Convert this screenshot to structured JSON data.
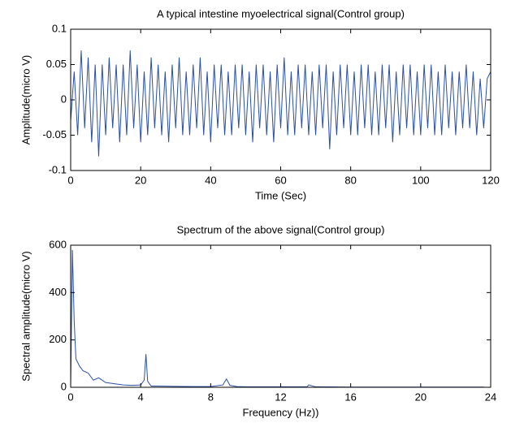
{
  "chart_data": [
    {
      "type": "line",
      "title": "A typical intestine myoelectrical signal(Control group)",
      "x_label": "Time (Sec)",
      "y_label": "Amplitude(micro V)",
      "xlim": [
        0,
        120
      ],
      "ylim": [
        -0.1,
        0.1
      ],
      "xticks": [
        0,
        20,
        40,
        60,
        80,
        100,
        120
      ],
      "yticks": [
        -0.1,
        -0.05,
        0,
        0.05,
        0.1
      ],
      "x": [
        0,
        1,
        2,
        3,
        4,
        5,
        6,
        7,
        8,
        9,
        10,
        11,
        12,
        13,
        14,
        15,
        16,
        17,
        18,
        19,
        20,
        21,
        22,
        23,
        24,
        25,
        26,
        27,
        28,
        29,
        30,
        31,
        32,
        33,
        34,
        35,
        36,
        37,
        38,
        39,
        40,
        41,
        42,
        43,
        44,
        45,
        46,
        47,
        48,
        49,
        50,
        51,
        52,
        53,
        54,
        55,
        56,
        57,
        58,
        59,
        60,
        61,
        62,
        63,
        64,
        65,
        66,
        67,
        68,
        69,
        70,
        71,
        72,
        73,
        74,
        75,
        76,
        77,
        78,
        79,
        80,
        81,
        82,
        83,
        84,
        85,
        86,
        87,
        88,
        89,
        90,
        91,
        92,
        93,
        94,
        95,
        96,
        97,
        98,
        99,
        100,
        101,
        102,
        103,
        104,
        105,
        106,
        107,
        108,
        109,
        110,
        111,
        112,
        113,
        114,
        115,
        116,
        117,
        118,
        119,
        120
      ],
      "series": [
        {
          "color": "#2b4fa8",
          "values": [
            -0.03,
            0.04,
            -0.05,
            0.07,
            -0.04,
            0.06,
            -0.06,
            0.05,
            -0.08,
            0.05,
            -0.05,
            0.06,
            -0.04,
            0.05,
            -0.06,
            0.05,
            -0.05,
            0.07,
            -0.04,
            0.05,
            -0.06,
            0.04,
            -0.05,
            0.06,
            -0.04,
            0.05,
            -0.05,
            0.04,
            -0.06,
            0.05,
            -0.04,
            0.06,
            -0.05,
            0.04,
            -0.05,
            0.05,
            -0.04,
            0.06,
            -0.05,
            0.04,
            -0.06,
            0.05,
            -0.04,
            0.05,
            -0.05,
            0.04,
            -0.05,
            0.05,
            -0.04,
            0.05,
            -0.05,
            0.04,
            -0.06,
            0.05,
            -0.04,
            0.05,
            -0.05,
            0.04,
            -0.06,
            0.05,
            -0.04,
            0.06,
            -0.05,
            0.04,
            -0.05,
            0.05,
            -0.04,
            0.05,
            -0.05,
            0.04,
            -0.05,
            0.05,
            -0.04,
            0.05,
            -0.07,
            0.04,
            -0.05,
            0.05,
            -0.04,
            0.05,
            -0.05,
            0.04,
            -0.05,
            0.05,
            -0.04,
            0.05,
            -0.05,
            0.04,
            -0.05,
            0.05,
            -0.04,
            0.05,
            -0.06,
            0.04,
            -0.05,
            0.05,
            -0.04,
            0.05,
            -0.05,
            0.04,
            -0.05,
            0.05,
            -0.04,
            0.05,
            -0.05,
            0.04,
            -0.05,
            0.05,
            -0.04,
            0.04,
            -0.05,
            0.04,
            -0.04,
            0.05,
            -0.04,
            0.04,
            -0.05,
            0.03,
            -0.04,
            0.03,
            0.04
          ]
        }
      ]
    },
    {
      "type": "line",
      "title": "Spectrum of the above signal(Control group)",
      "x_label": "Frequency (Hz))",
      "y_label": "Spectral amplitude(micro V)",
      "xlim": [
        0,
        24
      ],
      "ylim": [
        0,
        600
      ],
      "xticks": [
        0,
        4,
        8,
        12,
        16,
        20,
        24
      ],
      "yticks": [
        0,
        200,
        400,
        600
      ],
      "x": [
        0,
        0.1,
        0.2,
        0.3,
        0.5,
        0.7,
        1,
        1.3,
        1.6,
        2,
        2.5,
        3,
        3.5,
        4,
        4.2,
        4.3,
        4.4,
        4.6,
        5,
        6,
        7,
        8,
        8.7,
        8.9,
        9.1,
        9.5,
        10,
        12,
        13.5,
        13.6,
        14,
        16,
        18,
        20,
        22,
        23.6
      ],
      "series": [
        {
          "color": "#2b4fa8",
          "values": [
            0,
            580,
            280,
            120,
            90,
            70,
            60,
            30,
            40,
            20,
            15,
            10,
            8,
            10,
            30,
            140,
            25,
            5,
            5,
            4,
            3,
            3,
            10,
            35,
            8,
            3,
            2,
            2,
            2,
            10,
            2,
            1,
            1,
            1,
            1,
            1
          ]
        }
      ]
    }
  ]
}
